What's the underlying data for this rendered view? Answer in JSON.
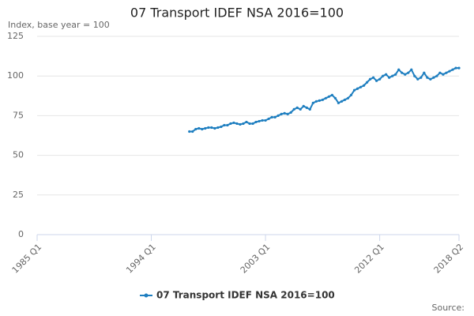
{
  "chart_data": {
    "type": "line",
    "title": "07 Transport IDEF NSA 2016=100",
    "subtitle": "Index, base year = 100",
    "source": "Source:",
    "categories": [
      "1985 Q1",
      null,
      null,
      null,
      null,
      null,
      null,
      null,
      null,
      null,
      null,
      null,
      null,
      null,
      null,
      null,
      null,
      null,
      null,
      null,
      null,
      null,
      null,
      null,
      null,
      null,
      null,
      null,
      null,
      null,
      null,
      null,
      null,
      null,
      null,
      null,
      "1994 Q1",
      null,
      null,
      null,
      null,
      null,
      null,
      null,
      null,
      null,
      null,
      null,
      null,
      null,
      null,
      null,
      null,
      null,
      null,
      null,
      null,
      null,
      null,
      null,
      null,
      null,
      null,
      null,
      null,
      null,
      null,
      null,
      null,
      null,
      null,
      null,
      "2003 Q1",
      null,
      null,
      null,
      null,
      null,
      null,
      null,
      null,
      null,
      null,
      null,
      null,
      null,
      null,
      null,
      null,
      null,
      null,
      null,
      null,
      null,
      null,
      null,
      null,
      null,
      null,
      null,
      null,
      null,
      null,
      null,
      null,
      null,
      null,
      null,
      "2012 Q1",
      null,
      null,
      null,
      null,
      null,
      null,
      null,
      null,
      null,
      null,
      null,
      null,
      null,
      null,
      null,
      null,
      null,
      null,
      null,
      null,
      null,
      null,
      null,
      null,
      "2018 Q2"
    ],
    "series": [
      {
        "name": "07 Transport IDEF NSA 2016=100",
        "color": "#1f7fc0",
        "values": [
          null,
          null,
          null,
          null,
          null,
          null,
          null,
          null,
          null,
          null,
          null,
          null,
          null,
          null,
          null,
          null,
          null,
          null,
          null,
          null,
          null,
          null,
          null,
          null,
          null,
          null,
          null,
          null,
          null,
          null,
          null,
          null,
          null,
          null,
          null,
          null,
          null,
          null,
          null,
          null,
          null,
          null,
          null,
          null,
          null,
          null,
          null,
          null,
          65,
          65,
          66.5,
          67,
          66.5,
          67,
          67.5,
          67.5,
          67,
          67.5,
          68,
          69,
          69,
          70,
          70.5,
          70,
          69.5,
          70,
          71,
          70,
          70,
          71,
          71.5,
          72,
          72,
          73,
          74,
          74,
          75,
          76,
          76.5,
          76,
          77,
          79,
          80,
          79,
          81,
          80,
          79,
          83,
          84,
          84.5,
          85,
          86,
          87,
          88,
          86,
          83,
          84,
          85,
          86,
          88,
          91,
          92,
          93,
          94,
          96,
          98,
          99,
          97,
          98,
          100,
          101,
          99,
          100,
          101,
          104,
          102,
          101,
          102,
          104,
          100,
          98,
          99,
          102,
          99,
          98,
          99,
          100,
          102,
          101,
          102,
          103,
          104,
          105,
          105
        ]
      }
    ],
    "ylim": [
      0,
      125
    ],
    "yticks": [
      0,
      25,
      50,
      75,
      100,
      125
    ],
    "grid": true
  }
}
